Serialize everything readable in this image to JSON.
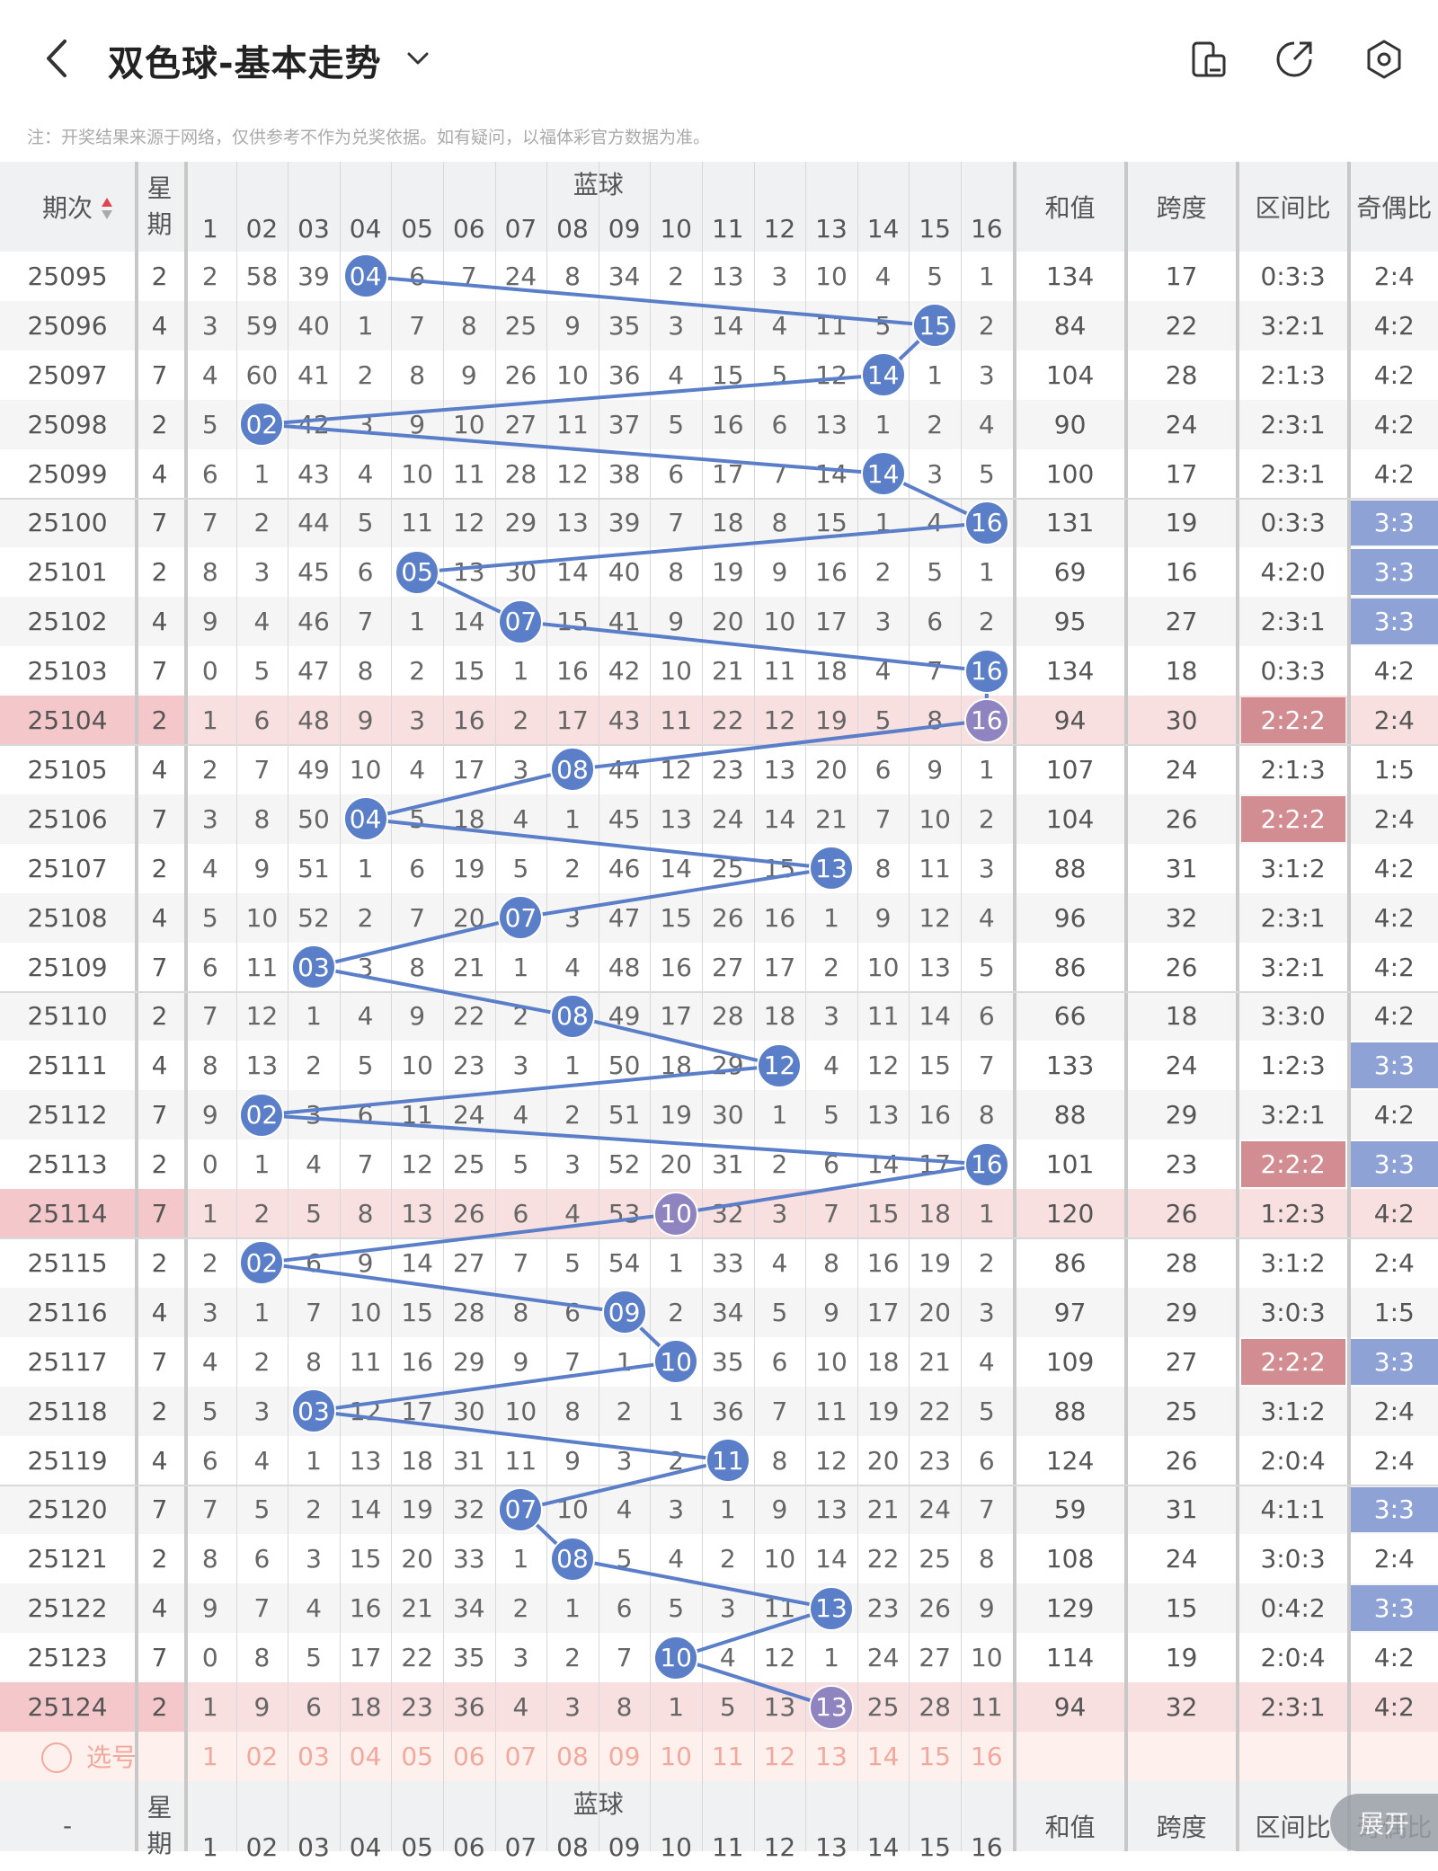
{
  "header": {
    "title": "双色球-基本走势",
    "note": "注：开奖结果来源于网络，仅供参考不作为兑奖依据。如有疑问，以福体彩官方数据为准。"
  },
  "colors": {
    "blue": "#5b7ec8",
    "purple": "#8f84bf",
    "pink_row": "#f8dfe0",
    "select_row": "#fdf0ed",
    "select_text": "#f2a99d"
  },
  "table": {
    "col_issue": "期次",
    "col_week": "星期",
    "group_blue": "蓝球",
    "col_sum": "和值",
    "col_span": "跨度",
    "col_zone": "区间比",
    "col_oe": "奇偶比",
    "blue_headers": [
      "1",
      "02",
      "03",
      "04",
      "05",
      "06",
      "07",
      "08",
      "09",
      "10",
      "11",
      "12",
      "13",
      "14",
      "15",
      "16"
    ],
    "rows": [
      {
        "issue": "25095",
        "week": "2",
        "cells": [
          "2",
          "58",
          "39",
          "04",
          "6",
          "7",
          "24",
          "8",
          "34",
          "2",
          "13",
          "3",
          "10",
          "4",
          "5",
          "1"
        ],
        "ball": 4,
        "sum": "134",
        "span": "17",
        "zone": "0:3:3",
        "oe": "2:4",
        "hl": false,
        "zhl": false,
        "ohl": false
      },
      {
        "issue": "25096",
        "week": "4",
        "cells": [
          "3",
          "59",
          "40",
          "1",
          "7",
          "8",
          "25",
          "9",
          "35",
          "3",
          "14",
          "4",
          "11",
          "5",
          "15",
          "2"
        ],
        "ball": 15,
        "sum": "84",
        "span": "22",
        "zone": "3:2:1",
        "oe": "4:2",
        "hl": false,
        "zhl": false,
        "ohl": false
      },
      {
        "issue": "25097",
        "week": "7",
        "cells": [
          "4",
          "60",
          "41",
          "2",
          "8",
          "9",
          "26",
          "10",
          "36",
          "4",
          "15",
          "5",
          "12",
          "14",
          "1",
          "3"
        ],
        "ball": 14,
        "sum": "104",
        "span": "28",
        "zone": "2:1:3",
        "oe": "4:2",
        "hl": false,
        "zhl": false,
        "ohl": false
      },
      {
        "issue": "25098",
        "week": "2",
        "cells": [
          "5",
          "02",
          "42",
          "3",
          "9",
          "10",
          "27",
          "11",
          "37",
          "5",
          "16",
          "6",
          "13",
          "1",
          "2",
          "4"
        ],
        "ball": 2,
        "sum": "90",
        "span": "24",
        "zone": "2:3:1",
        "oe": "4:2",
        "hl": false,
        "zhl": false,
        "ohl": false
      },
      {
        "issue": "25099",
        "week": "4",
        "cells": [
          "6",
          "1",
          "43",
          "4",
          "10",
          "11",
          "28",
          "12",
          "38",
          "6",
          "17",
          "7",
          "14",
          "14",
          "3",
          "5"
        ],
        "ball": 14,
        "sum": "100",
        "span": "17",
        "zone": "2:3:1",
        "oe": "4:2",
        "hl": false,
        "zhl": false,
        "ohl": false
      },
      {
        "issue": "25100",
        "week": "7",
        "cells": [
          "7",
          "2",
          "44",
          "5",
          "11",
          "12",
          "29",
          "13",
          "39",
          "7",
          "18",
          "8",
          "15",
          "1",
          "4",
          "16"
        ],
        "ball": 16,
        "sum": "131",
        "span": "19",
        "zone": "0:3:3",
        "oe": "3:3",
        "hl": false,
        "zhl": false,
        "ohl": true
      },
      {
        "issue": "25101",
        "week": "2",
        "cells": [
          "8",
          "3",
          "45",
          "6",
          "05",
          "13",
          "30",
          "14",
          "40",
          "8",
          "19",
          "9",
          "16",
          "2",
          "5",
          "1"
        ],
        "ball": 5,
        "sum": "69",
        "span": "16",
        "zone": "4:2:0",
        "oe": "3:3",
        "hl": false,
        "zhl": false,
        "ohl": true
      },
      {
        "issue": "25102",
        "week": "4",
        "cells": [
          "9",
          "4",
          "46",
          "7",
          "1",
          "14",
          "07",
          "15",
          "41",
          "9",
          "20",
          "10",
          "17",
          "3",
          "6",
          "2"
        ],
        "ball": 7,
        "sum": "95",
        "span": "27",
        "zone": "2:3:1",
        "oe": "3:3",
        "hl": false,
        "zhl": false,
        "ohl": true
      },
      {
        "issue": "25103",
        "week": "7",
        "cells": [
          "0",
          "5",
          "47",
          "8",
          "2",
          "15",
          "1",
          "16",
          "42",
          "10",
          "21",
          "11",
          "18",
          "4",
          "7",
          "16"
        ],
        "ball": 16,
        "sum": "134",
        "span": "18",
        "zone": "0:3:3",
        "oe": "4:2",
        "hl": false,
        "zhl": false,
        "ohl": false
      },
      {
        "issue": "25104",
        "week": "2",
        "cells": [
          "1",
          "6",
          "48",
          "9",
          "3",
          "16",
          "2",
          "17",
          "43",
          "11",
          "22",
          "12",
          "19",
          "5",
          "8",
          "16"
        ],
        "ball": 16,
        "sum": "94",
        "span": "30",
        "zone": "2:2:2",
        "oe": "2:4",
        "hl": true,
        "zhl": true,
        "ohl": false
      },
      {
        "issue": "25105",
        "week": "4",
        "cells": [
          "2",
          "7",
          "49",
          "10",
          "4",
          "17",
          "3",
          "08",
          "44",
          "12",
          "23",
          "13",
          "20",
          "6",
          "9",
          "1"
        ],
        "ball": 8,
        "sum": "107",
        "span": "24",
        "zone": "2:1:3",
        "oe": "1:5",
        "hl": false,
        "zhl": false,
        "ohl": false
      },
      {
        "issue": "25106",
        "week": "7",
        "cells": [
          "3",
          "8",
          "50",
          "04",
          "5",
          "18",
          "4",
          "1",
          "45",
          "13",
          "24",
          "14",
          "21",
          "7",
          "10",
          "2"
        ],
        "ball": 4,
        "sum": "104",
        "span": "26",
        "zone": "2:2:2",
        "oe": "2:4",
        "hl": false,
        "zhl": true,
        "ohl": false
      },
      {
        "issue": "25107",
        "week": "2",
        "cells": [
          "4",
          "9",
          "51",
          "1",
          "6",
          "19",
          "5",
          "2",
          "46",
          "14",
          "25",
          "15",
          "13",
          "8",
          "11",
          "3"
        ],
        "ball": 13,
        "sum": "88",
        "span": "31",
        "zone": "3:1:2",
        "oe": "4:2",
        "hl": false,
        "zhl": false,
        "ohl": false
      },
      {
        "issue": "25108",
        "week": "4",
        "cells": [
          "5",
          "10",
          "52",
          "2",
          "7",
          "20",
          "07",
          "3",
          "47",
          "15",
          "26",
          "16",
          "1",
          "9",
          "12",
          "4"
        ],
        "ball": 7,
        "sum": "96",
        "span": "32",
        "zone": "2:3:1",
        "oe": "4:2",
        "hl": false,
        "zhl": false,
        "ohl": false
      },
      {
        "issue": "25109",
        "week": "7",
        "cells": [
          "6",
          "11",
          "03",
          "3",
          "8",
          "21",
          "1",
          "4",
          "48",
          "16",
          "27",
          "17",
          "2",
          "10",
          "13",
          "5"
        ],
        "ball": 3,
        "sum": "86",
        "span": "26",
        "zone": "3:2:1",
        "oe": "4:2",
        "hl": false,
        "zhl": false,
        "ohl": false
      },
      {
        "issue": "25110",
        "week": "2",
        "cells": [
          "7",
          "12",
          "1",
          "4",
          "9",
          "22",
          "2",
          "08",
          "49",
          "17",
          "28",
          "18",
          "3",
          "11",
          "14",
          "6"
        ],
        "ball": 8,
        "sum": "66",
        "span": "18",
        "zone": "3:3:0",
        "oe": "4:2",
        "hl": false,
        "zhl": false,
        "ohl": false
      },
      {
        "issue": "25111",
        "week": "4",
        "cells": [
          "8",
          "13",
          "2",
          "5",
          "10",
          "23",
          "3",
          "1",
          "50",
          "18",
          "29",
          "12",
          "4",
          "12",
          "15",
          "7"
        ],
        "ball": 12,
        "sum": "133",
        "span": "24",
        "zone": "1:2:3",
        "oe": "3:3",
        "hl": false,
        "zhl": false,
        "ohl": true
      },
      {
        "issue": "25112",
        "week": "7",
        "cells": [
          "9",
          "02",
          "3",
          "6",
          "11",
          "24",
          "4",
          "2",
          "51",
          "19",
          "30",
          "1",
          "5",
          "13",
          "16",
          "8"
        ],
        "ball": 2,
        "sum": "88",
        "span": "29",
        "zone": "3:2:1",
        "oe": "4:2",
        "hl": false,
        "zhl": false,
        "ohl": false
      },
      {
        "issue": "25113",
        "week": "2",
        "cells": [
          "0",
          "1",
          "4",
          "7",
          "12",
          "25",
          "5",
          "3",
          "52",
          "20",
          "31",
          "2",
          "6",
          "14",
          "17",
          "16"
        ],
        "ball": 16,
        "sum": "101",
        "span": "23",
        "zone": "2:2:2",
        "oe": "3:3",
        "hl": false,
        "zhl": true,
        "ohl": true
      },
      {
        "issue": "25114",
        "week": "7",
        "cells": [
          "1",
          "2",
          "5",
          "8",
          "13",
          "26",
          "6",
          "4",
          "53",
          "10",
          "32",
          "3",
          "7",
          "15",
          "18",
          "1"
        ],
        "ball": 10,
        "sum": "120",
        "span": "26",
        "zone": "1:2:3",
        "oe": "4:2",
        "hl": true,
        "zhl": false,
        "ohl": false
      },
      {
        "issue": "25115",
        "week": "2",
        "cells": [
          "2",
          "02",
          "6",
          "9",
          "14",
          "27",
          "7",
          "5",
          "54",
          "1",
          "33",
          "4",
          "8",
          "16",
          "19",
          "2"
        ],
        "ball": 2,
        "sum": "86",
        "span": "28",
        "zone": "3:1:2",
        "oe": "2:4",
        "hl": false,
        "zhl": false,
        "ohl": false
      },
      {
        "issue": "25116",
        "week": "4",
        "cells": [
          "3",
          "1",
          "7",
          "10",
          "15",
          "28",
          "8",
          "6",
          "09",
          "2",
          "34",
          "5",
          "9",
          "17",
          "20",
          "3"
        ],
        "ball": 9,
        "sum": "97",
        "span": "29",
        "zone": "3:0:3",
        "oe": "1:5",
        "hl": false,
        "zhl": false,
        "ohl": false
      },
      {
        "issue": "25117",
        "week": "7",
        "cells": [
          "4",
          "2",
          "8",
          "11",
          "16",
          "29",
          "9",
          "7",
          "1",
          "10",
          "35",
          "6",
          "10",
          "18",
          "21",
          "4"
        ],
        "ball": 10,
        "sum": "109",
        "span": "27",
        "zone": "2:2:2",
        "oe": "3:3",
        "hl": false,
        "zhl": true,
        "ohl": true
      },
      {
        "issue": "25118",
        "week": "2",
        "cells": [
          "5",
          "3",
          "03",
          "12",
          "17",
          "30",
          "10",
          "8",
          "2",
          "1",
          "36",
          "7",
          "11",
          "19",
          "22",
          "5"
        ],
        "ball": 3,
        "sum": "88",
        "span": "25",
        "zone": "3:1:2",
        "oe": "2:4",
        "hl": false,
        "zhl": false,
        "ohl": false
      },
      {
        "issue": "25119",
        "week": "4",
        "cells": [
          "6",
          "4",
          "1",
          "13",
          "18",
          "31",
          "11",
          "9",
          "3",
          "2",
          "11",
          "8",
          "12",
          "20",
          "23",
          "6"
        ],
        "ball": 11,
        "sum": "124",
        "span": "26",
        "zone": "2:0:4",
        "oe": "2:4",
        "hl": false,
        "zhl": false,
        "ohl": false
      },
      {
        "issue": "25120",
        "week": "7",
        "cells": [
          "7",
          "5",
          "2",
          "14",
          "19",
          "32",
          "07",
          "10",
          "4",
          "3",
          "1",
          "9",
          "13",
          "21",
          "24",
          "7"
        ],
        "ball": 7,
        "sum": "59",
        "span": "31",
        "zone": "4:1:1",
        "oe": "3:3",
        "hl": false,
        "zhl": false,
        "ohl": true
      },
      {
        "issue": "25121",
        "week": "2",
        "cells": [
          "8",
          "6",
          "3",
          "15",
          "20",
          "33",
          "1",
          "08",
          "5",
          "4",
          "2",
          "10",
          "14",
          "22",
          "25",
          "8"
        ],
        "ball": 8,
        "sum": "108",
        "span": "24",
        "zone": "3:0:3",
        "oe": "2:4",
        "hl": false,
        "zhl": false,
        "ohl": false
      },
      {
        "issue": "25122",
        "week": "4",
        "cells": [
          "9",
          "7",
          "4",
          "16",
          "21",
          "34",
          "2",
          "1",
          "6",
          "5",
          "3",
          "11",
          "13",
          "23",
          "26",
          "9"
        ],
        "ball": 13,
        "sum": "129",
        "span": "15",
        "zone": "0:4:2",
        "oe": "3:3",
        "hl": false,
        "zhl": false,
        "ohl": true
      },
      {
        "issue": "25123",
        "week": "7",
        "cells": [
          "0",
          "8",
          "5",
          "17",
          "22",
          "35",
          "3",
          "2",
          "7",
          "10",
          "4",
          "12",
          "1",
          "24",
          "27",
          "10"
        ],
        "ball": 10,
        "sum": "114",
        "span": "19",
        "zone": "2:0:4",
        "oe": "4:2",
        "hl": false,
        "zhl": false,
        "ohl": false
      },
      {
        "issue": "25124",
        "week": "2",
        "cells": [
          "1",
          "9",
          "6",
          "18",
          "23",
          "36",
          "4",
          "3",
          "8",
          "1",
          "5",
          "13",
          "13",
          "25",
          "28",
          "11"
        ],
        "ball": 13,
        "sum": "94",
        "span": "32",
        "zone": "2:3:1",
        "oe": "4:2",
        "hl": true,
        "zhl": false,
        "ohl": false
      }
    ],
    "select_label": "选号",
    "footer_issue": "-",
    "expand_label": "展开"
  }
}
